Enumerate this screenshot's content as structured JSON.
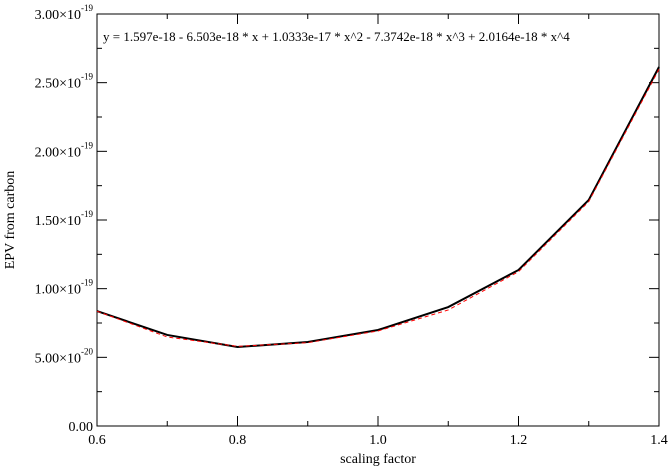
{
  "chart_data": {
    "type": "line",
    "annotation": "y = 1.597e-18 - 6.503e-18 * x + 1.0333e-17 * x^2 - 7.3742e-18 * x^3 + 2.0164e-18 * x^4",
    "xlabel": "scaling factor",
    "ylabel": "EPV from carbon",
    "x": [
      0.6,
      0.7,
      0.8,
      0.9,
      1.0,
      1.1,
      1.2,
      1.3,
      1.4
    ],
    "series": [
      {
        "color": "#000000",
        "dash": "solid",
        "values": [
          8.37e-20,
          6.63e-20,
          5.75e-20,
          6.12e-20,
          6.99e-20,
          8.66e-20,
          1.136e-19,
          1.646e-19,
          2.614e-19
        ]
      },
      {
        "color": "#ff0000",
        "dash": "dashed",
        "values": [
          8.36e-20,
          6.48e-20,
          5.8e-20,
          6.07e-20,
          6.92e-20,
          8.45e-20,
          1.124e-19,
          1.634e-19,
          2.598e-19
        ]
      }
    ],
    "xlim": [
      0.6,
      1.4
    ],
    "ylim": [
      0,
      3e-19
    ],
    "xticks": [
      0.6,
      0.8,
      {
        "value": 1,
        "label": "1.0"
      },
      1.2,
      1.4
    ],
    "xminor_ticks": [
      0.7,
      0.9,
      1.1,
      1.3
    ],
    "yticks": [
      {
        "value": 0,
        "label": "0.00"
      },
      {
        "value": 5e-20,
        "label": "5.00×10",
        "exponent": "-20"
      },
      {
        "value": 1e-19,
        "label": "1.00×10",
        "exponent": "-19"
      },
      {
        "value": 1.5e-19,
        "label": "1.50×10",
        "exponent": "-19"
      },
      {
        "value": 2e-19,
        "label": "2.00×10",
        "exponent": "-19"
      },
      {
        "value": 2.5e-19,
        "label": "2.50×10",
        "exponent": "-19"
      },
      {
        "value": 3e-19,
        "label": "3.00×10",
        "exponent": "-19"
      }
    ],
    "yminor_ticks": [
      2.5e-20,
      7.5e-20,
      1.25e-19,
      1.75e-19,
      2.25e-19,
      2.75e-19
    ]
  }
}
